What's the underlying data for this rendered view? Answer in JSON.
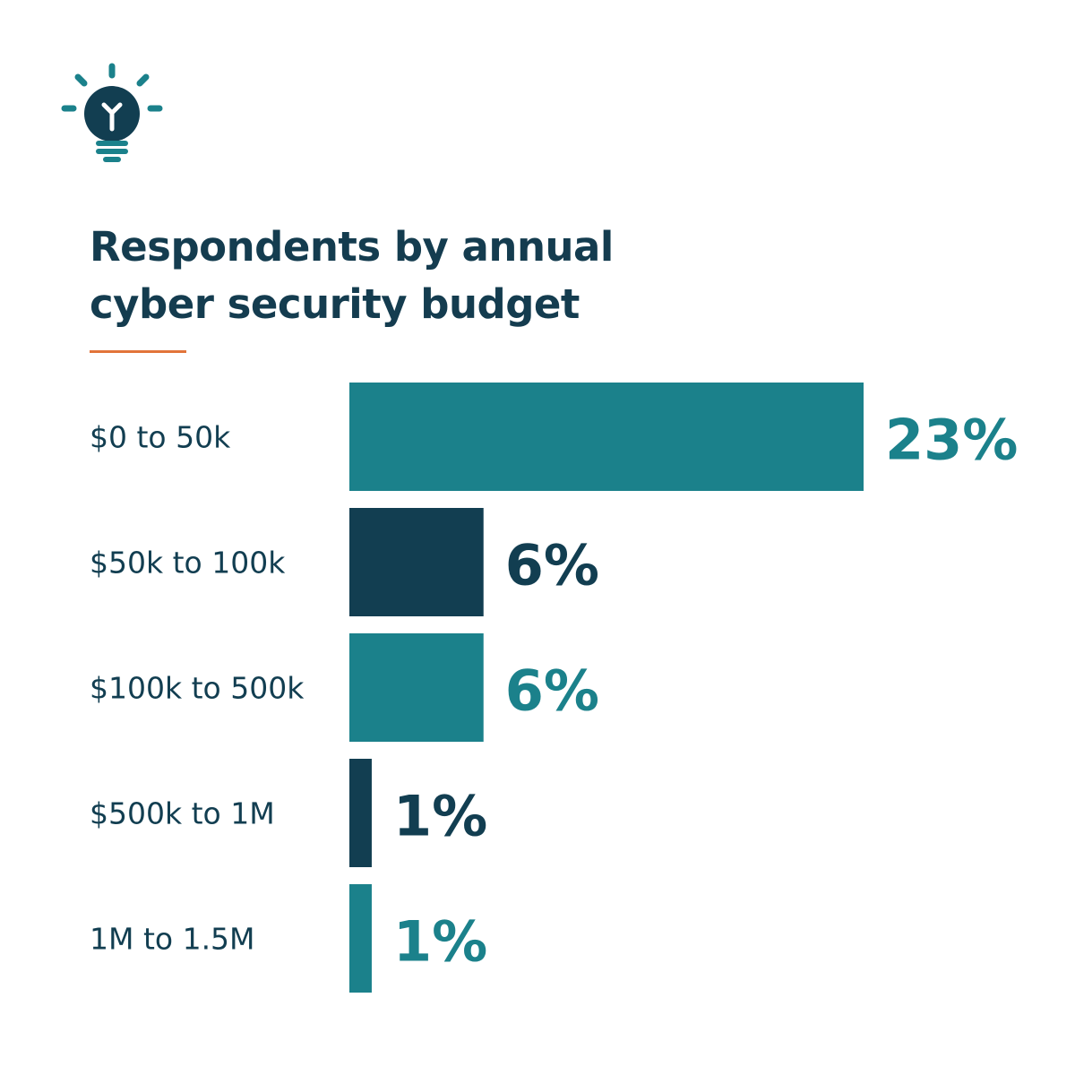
{
  "title_lines": [
    "Respondents by annual",
    "cyber security budget"
  ],
  "icon": "lightbulb-icon",
  "colors": {
    "title": "#143c4f",
    "accent_line": "#e2743a",
    "teal": "#1b818b",
    "navy": "#123e51"
  },
  "chart_data": {
    "type": "bar",
    "orientation": "horizontal",
    "categories": [
      "$0 to 50k",
      "$50k to 100k",
      "$100k to 500k",
      "$500k to 1M",
      "1M to 1.5M"
    ],
    "values": [
      23,
      6,
      6,
      1,
      1
    ],
    "value_labels": [
      "23%",
      "6%",
      "6%",
      "1%",
      "1%"
    ],
    "bar_colors": [
      "#1b818b",
      "#123e51",
      "#1b818b",
      "#123e51",
      "#1b818b"
    ],
    "unit": "%",
    "title": "Respondents by annual cyber security budget",
    "xlabel": "",
    "ylabel": "",
    "grid": false,
    "legend": "none"
  }
}
